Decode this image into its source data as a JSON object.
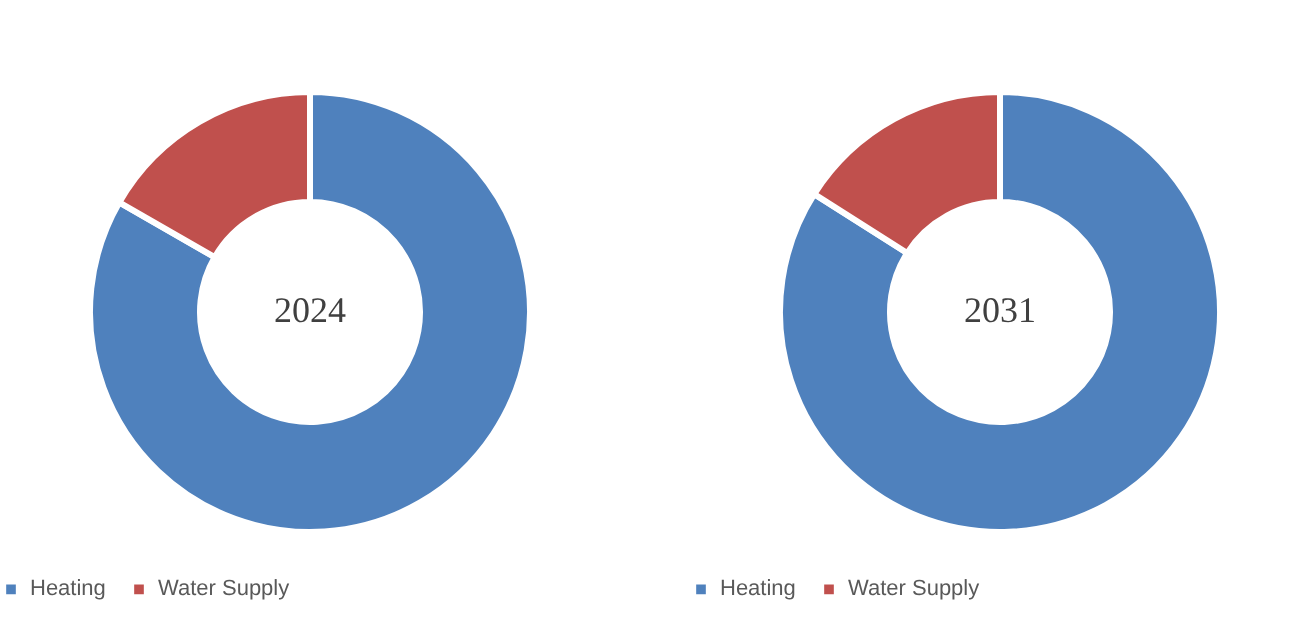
{
  "chart_data": [
    {
      "type": "donut",
      "title": "2024",
      "categories": [
        "Heating",
        "Water Supply"
      ],
      "values": [
        83.3,
        16.7
      ],
      "colors": [
        "#4f81bd",
        "#c0504d"
      ],
      "legend": "bottom"
    },
    {
      "type": "donut",
      "title": "2031",
      "categories": [
        "Heating",
        "Water Supply"
      ],
      "values": [
        84,
        16
      ],
      "colors": [
        "#4f81bd",
        "#c0504d"
      ],
      "legend": "bottom"
    }
  ]
}
